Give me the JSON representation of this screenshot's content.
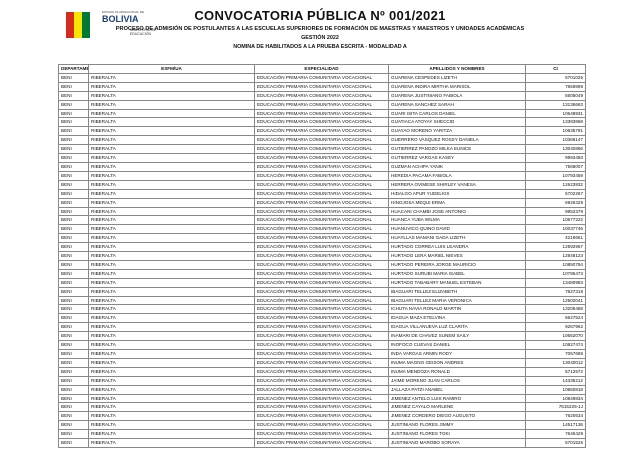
{
  "header": {
    "logo_small": "ESTADO PLURINACIONAL DE",
    "logo_text": "BOLIVIA",
    "ministry": "MINISTERIO DE EDUCACIÓN",
    "title": "CONVOCATORIA PÚBLICA Nº 001/2021",
    "subtitle": "PROCESO DE ADMISIÓN DE POSTULANTES A LAS ESCUELAS SUPERIORES DE FORMACIÓN DE MAESTRAS Y MAESTROS Y UNIDADES ACADÉMICAS",
    "gestion": "GESTIÓN 2022",
    "list_title": "NOMINA DE HABILITADOS A LA PRUEBA ESCRITA - MODALIDAD A"
  },
  "table": {
    "columns": [
      "DEPARTAMENTO",
      "ESFM/UA",
      "ESPECIALIDAD",
      "APELLIDOS Y NOMBRES",
      "CI"
    ],
    "rows": [
      [
        "BENI",
        "RIBERALTA",
        "EDUCACIÓN PRIMARIA COMUNITARIA VOCACIONAL",
        "GUARENA CESPEDES LIZETH",
        "5701025"
      ],
      [
        "BENI",
        "RIBERALTA",
        "EDUCACIÓN PRIMARIA COMUNITARIA VOCACIONAL",
        "GUARENA INDIRA MIRTHA MARISOL",
        "7659898"
      ],
      [
        "BENI",
        "RIBERALTA",
        "EDUCACIÓN PRIMARIA COMUNITARIA VOCACIONAL",
        "GUARENA JUSTINIANO FABIOLA",
        "5605049"
      ],
      [
        "BENI",
        "RIBERALTA",
        "EDUCACIÓN PRIMARIA COMUNITARIA VOCACIONAL",
        "GUARENA SANCHEZ SARAH",
        "13136663"
      ],
      [
        "BENI",
        "RIBERALTA",
        "EDUCACIÓN PRIMARIA COMUNITARIA VOCACIONAL",
        "GUARI ISITA CARLOS DANIEL",
        "10648931"
      ],
      [
        "BENI",
        "RIBERALTA",
        "EDUCACIÓN PRIMARIA COMUNITARIA VOCACIONAL",
        "GUATIACA ATOYAY SHECCID",
        "13393868"
      ],
      [
        "BENI",
        "RIBERALTA",
        "EDUCACIÓN PRIMARIA COMUNITARIA VOCACIONAL",
        "GUAYAO MORENO YARITZA",
        "10635791"
      ],
      [
        "BENI",
        "RIBERALTA",
        "EDUCACIÓN PRIMARIA COMUNITARIA VOCACIONAL",
        "GUERRERO VASQUEZ ROSSY DANIELA",
        "10366147"
      ],
      [
        "BENI",
        "RIBERALTA",
        "EDUCACIÓN PRIMARIA COMUNITARIA VOCACIONAL",
        "GUTIERREZ PANOZO MILKA EUNICE",
        "13040866"
      ],
      [
        "BENI",
        "RIBERALTA",
        "EDUCACIÓN PRIMARIA COMUNITARIA VOCACIONAL",
        "GUTIERREZ VARGAS KASEY",
        "9993450"
      ],
      [
        "BENI",
        "RIBERALTA",
        "EDUCACIÓN PRIMARIA COMUNITARIA VOCACIONAL",
        "GUZMAN ACHIPA YANIK",
        "7568007"
      ],
      [
        "BENI",
        "RIBERALTA",
        "EDUCACIÓN PRIMARIA COMUNITARIA VOCACIONAL",
        "HEREDIA PACAMA FABIOLA",
        "10793459"
      ],
      [
        "BENI",
        "RIBERALTA",
        "EDUCACIÓN PRIMARIA COMUNITARIA VOCACIONAL",
        "HERRERA OVIMESE SHIRLEY VANESA",
        "12623932"
      ],
      [
        "BENI",
        "RIBERALTA",
        "EDUCACIÓN PRIMARIA COMUNITARIA VOCACIONAL",
        "HIDALGO APUR YUDELKIS",
        "5702267"
      ],
      [
        "BENI",
        "RIBERALTA",
        "EDUCACIÓN PRIMARIA COMUNITARIA VOCACIONAL",
        "HINOJOSA MEQUI ERMA",
        "6926429"
      ],
      [
        "BENI",
        "RIBERALTA",
        "EDUCACIÓN PRIMARIA COMUNITARIA VOCACIONAL",
        "HUACANI CHAMBI JOSE ANTONIO",
        "9952379"
      ],
      [
        "BENI",
        "RIBERALTA",
        "EDUCACIÓN PRIMARIA COMUNITARIA VOCACIONAL",
        "HUANCA YUBA WILMA",
        "10677222"
      ],
      [
        "BENI",
        "RIBERALTA",
        "EDUCACIÓN PRIMARIA COMUNITARIA VOCACIONAL",
        "HUANUVICO QUINO DAVID",
        "10037746"
      ],
      [
        "BENI",
        "RIBERALTA",
        "EDUCACIÓN PRIMARIA COMUNITARIA VOCACIONAL",
        "HUAYLLAS MAMANI GADA LIZETH",
        "4218661"
      ],
      [
        "BENI",
        "RIBERALTA",
        "EDUCACIÓN PRIMARIA COMUNITARIA VOCACIONAL",
        "HURTADO CORREA LUIS LEANDRA",
        "12592967"
      ],
      [
        "BENI",
        "RIBERALTA",
        "EDUCACIÓN PRIMARIA COMUNITARIA VOCACIONAL",
        "HURTADO LERA MARIEL NIEVES",
        "12848123"
      ],
      [
        "BENI",
        "RIBERALTA",
        "EDUCACIÓN PRIMARIA COMUNITARIA VOCACIONAL",
        "HURTADO PEREIRA JORGE MAURICIO",
        "10850784"
      ],
      [
        "BENI",
        "RIBERALTA",
        "EDUCACIÓN PRIMARIA COMUNITARIA VOCACIONAL",
        "HURTADO SURUBI MARIA ISABEL",
        "10795473"
      ],
      [
        "BENI",
        "RIBERALTA",
        "EDUCACIÓN PRIMARIA COMUNITARIA VOCACIONAL",
        "HURTADO TABABARY MANUEL ESTEBAN",
        "13480983"
      ],
      [
        "BENI",
        "RIBERALTA",
        "EDUCACIÓN PRIMARIA COMUNITARIA VOCACIONAL",
        "IBAGUARI TELLEZ ELIZABETH",
        "7627318"
      ],
      [
        "BENI",
        "RIBERALTA",
        "EDUCACIÓN PRIMARIA COMUNITARIA VOCACIONAL",
        "IBAGUARI TELLEZ MARIA VERONICA",
        "12502041"
      ],
      [
        "BENI",
        "RIBERALTA",
        "EDUCACIÓN PRIMARIA COMUNITARIA VOCACIONAL",
        "ICHUTA NAVIA RONALD MARTIN",
        "13206458"
      ],
      [
        "BENI",
        "RIBERALTA",
        "EDUCACIÓN PRIMARIA COMUNITARIA VOCACIONAL",
        "IDAGUA MAZA ETELVINA",
        "5627524"
      ],
      [
        "BENI",
        "RIBERALTA",
        "EDUCACIÓN PRIMARIA COMUNITARIA VOCACIONAL",
        "IDAGUA VILLANUEVA LUZ CLARITA",
        "9267962"
      ],
      [
        "BENI",
        "RIBERALTA",
        "EDUCACIÓN PRIMARIA COMUNITARIA VOCACIONAL",
        "INAMARI DE CHAVEZ SUNEM SAILY",
        "10652070"
      ],
      [
        "BENI",
        "RIBERALTA",
        "EDUCACIÓN PRIMARIA COMUNITARIA VOCACIONAL",
        "INOFOCO CUEVAS DANIEL",
        "10827474"
      ],
      [
        "BENI",
        "RIBERALTA",
        "EDUCACIÓN PRIMARIA COMUNITARIA VOCACIONAL",
        "INDA VARGAS ARMIN RODY",
        "7057685"
      ],
      [
        "BENI",
        "RIBERALTA",
        "EDUCACIÓN PRIMARIA COMUNITARIA VOCACIONAL",
        "INUMA MAGNO GEISON ANDRES",
        "13040012"
      ],
      [
        "BENI",
        "RIBERALTA",
        "EDUCACIÓN PRIMARIA COMUNITARIA VOCACIONAL",
        "INUMA MENDOZA RONALD",
        "5712572"
      ],
      [
        "BENI",
        "RIBERALTA",
        "EDUCACIÓN PRIMARIA COMUNITARIA VOCACIONAL",
        "JAIME MORENO JUAN CARLOS",
        "14335212"
      ],
      [
        "BENI",
        "RIBERALTA",
        "EDUCACIÓN PRIMARIA COMUNITARIA VOCACIONAL",
        "JALLAZA PATZI ANABEL",
        "10850818"
      ],
      [
        "BENI",
        "RIBERALTA",
        "EDUCACIÓN PRIMARIA COMUNITARIA VOCACIONAL",
        "JIMENEZ ANTELO LUIS RAMIRO",
        "10849834"
      ],
      [
        "BENI",
        "RIBERALTA",
        "EDUCACIÓN PRIMARIA COMUNITARIA VOCACIONAL",
        "JIMENEZ CAYALO MARLENE",
        "7615225-1J"
      ],
      [
        "BENI",
        "RIBERALTA",
        "EDUCACIÓN PRIMARIA COMUNITARIA VOCACIONAL",
        "JIMENEZ CORDERO DIEGO AUGUSTO",
        "7620634"
      ],
      [
        "BENI",
        "RIBERALTA",
        "EDUCACIÓN PRIMARIA COMUNITARIA VOCACIONAL",
        "JUSTINIANO FLORES JIMMY",
        "14517136"
      ],
      [
        "BENI",
        "RIBERALTA",
        "EDUCACIÓN PRIMARIA COMUNITARIA VOCACIONAL",
        "JUSTINIANO FLORES TOKI",
        "7646429"
      ],
      [
        "BENI",
        "RIBERALTA",
        "EDUCACIÓN PRIMARIA COMUNITARIA VOCACIONAL",
        "JUSTINIANO MAROBO SORAYA",
        "5701526"
      ]
    ]
  }
}
